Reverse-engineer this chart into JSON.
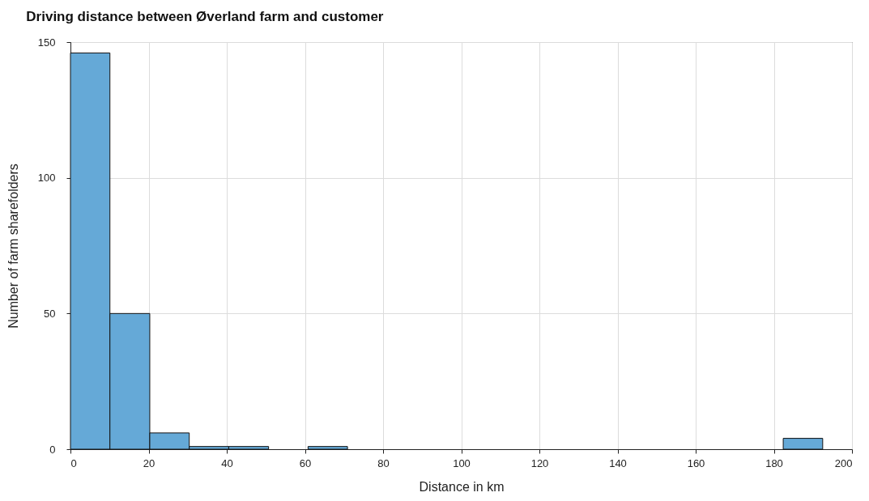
{
  "chart_data": {
    "type": "histogram",
    "title": "Driving distance between Øverland farm and customer",
    "xlabel": "Distance in km",
    "ylabel": "Number of farm sharefolders",
    "bins": [
      0,
      10.1,
      20.3,
      30.4,
      40.5,
      50.7,
      60.8,
      70.9,
      81,
      91.2,
      101.3,
      111.4,
      121.6,
      131.7,
      141.8,
      152,
      162.1,
      172.2,
      182.4,
      192.5
    ],
    "values": [
      146,
      50,
      6,
      1,
      1,
      0,
      1,
      0,
      0,
      0,
      0,
      0,
      0,
      0,
      0,
      0,
      0,
      0,
      4
    ],
    "color": "#65a9d7",
    "xlim": [
      0,
      200
    ],
    "xticks": [
      0,
      20,
      40,
      60,
      80,
      100,
      120,
      140,
      160,
      180,
      200
    ],
    "ylim": [
      0,
      150
    ],
    "yticks": [
      0,
      50,
      100,
      150
    ],
    "grid": true
  }
}
